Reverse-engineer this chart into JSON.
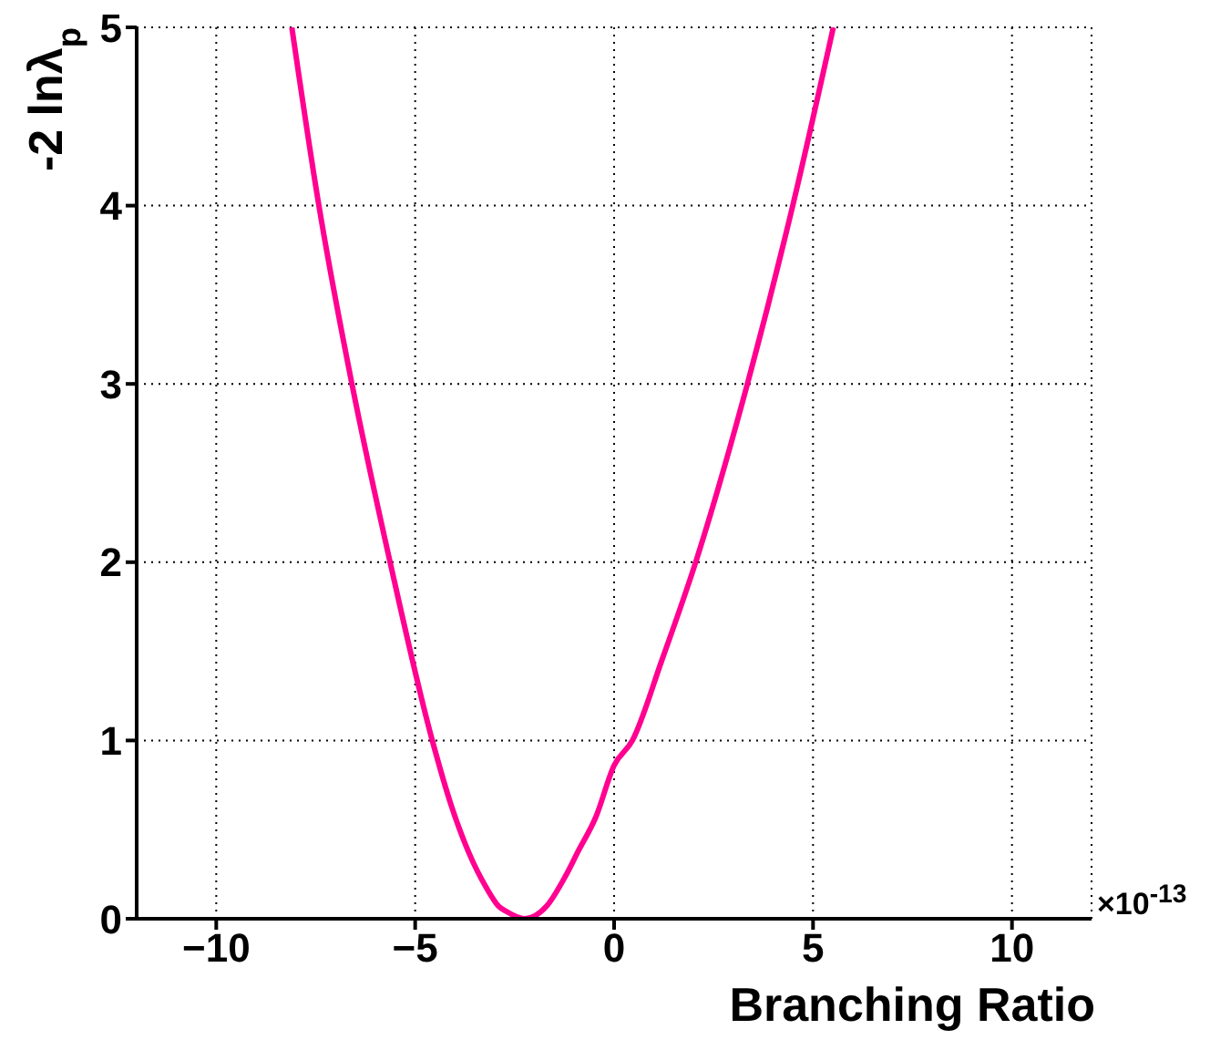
{
  "chart_data": {
    "type": "line",
    "xlabel": "Branching Ratio",
    "ylabel": "-2 lnλ$_{p}$",
    "annotations": [
      "×10$^{-13}$"
    ],
    "xlim": [
      -12,
      12
    ],
    "xticks": [
      {
        "value": -10,
        "label": "−10"
      },
      {
        "value": -5,
        "label": "−5"
      },
      0,
      5,
      10
    ],
    "ylim": [
      0,
      5
    ],
    "yticks": [
      0,
      1,
      2,
      3,
      4,
      5
    ],
    "grid": true,
    "line_style": "solid",
    "marker": "none",
    "series": [
      {
        "color": "#ff0090",
        "x": [
          -8.1,
          -7.42,
          -6.59,
          -5.63,
          -4.57,
          -4.1,
          -3.65,
          -3.2,
          -2.9,
          -2.7,
          -2.25,
          -1.7,
          -1.22,
          -0.9,
          -0.46,
          0,
          0.46,
          1.2,
          2.05,
          3.35,
          4.49,
          5.51
        ],
        "values": [
          5,
          4,
          3,
          2,
          1,
          0.64,
          0.37,
          0.17,
          0.07,
          0.04,
          0,
          0.07,
          0.24,
          0.38,
          0.57,
          0.86,
          1,
          1.45,
          2,
          3,
          4,
          5
        ]
      }
    ]
  }
}
